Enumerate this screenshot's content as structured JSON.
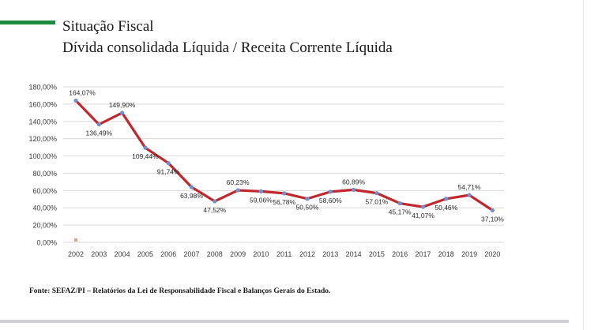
{
  "header": {
    "title": "Situação Fiscal",
    "subtitle": "Dívida consolidada Líquida / Receita Corrente Líquida"
  },
  "footer": {
    "source": "Fonte: SEFAZ/PI – Relatórios da Lei de Responsabilidade Fiscal e Balanços Gerais do Estado."
  },
  "colors": {
    "accent": "#1e8a3c",
    "line": "#c0282d",
    "marker": "#6f8fcf",
    "grid": "#d9d9d9",
    "legend_marker": "#d9a08a"
  },
  "chart_data": {
    "type": "line",
    "title": "",
    "xlabel": "",
    "ylabel": "",
    "ylim": [
      0,
      180
    ],
    "yticks": [
      "0,00%",
      "20,00%",
      "40,00%",
      "60,00%",
      "80,00%",
      "100,00%",
      "120,00%",
      "140,00%",
      "160,00%",
      "180,00%"
    ],
    "grid": true,
    "categories": [
      "2002",
      "2003",
      "2004",
      "2005",
      "2006",
      "2007",
      "2008",
      "2009",
      "2010",
      "2011",
      "2012",
      "2013",
      "2014",
      "2015",
      "2016",
      "2017",
      "2018",
      "2019",
      "2020"
    ],
    "series": [
      {
        "values": [
          164.07,
          136.49,
          149.9,
          109.44,
          91.74,
          63.98,
          47.52,
          60.23,
          59.06,
          56.78,
          50.5,
          58.6,
          60.89,
          57.01,
          45.17,
          41.07,
          50.46,
          54.71,
          37.1
        ],
        "labels": [
          "164,07%",
          "136,49%",
          "149,90%",
          "109,44%",
          "91,74%",
          "63,98%",
          "47,52%",
          "60,23%",
          "59,06%",
          "56,78%",
          "50,50%",
          "58,60%",
          "60,89%",
          "57,01%",
          "45,17%",
          "41,07%",
          "50,46%",
          "54,71%",
          "37,10%"
        ]
      }
    ]
  }
}
